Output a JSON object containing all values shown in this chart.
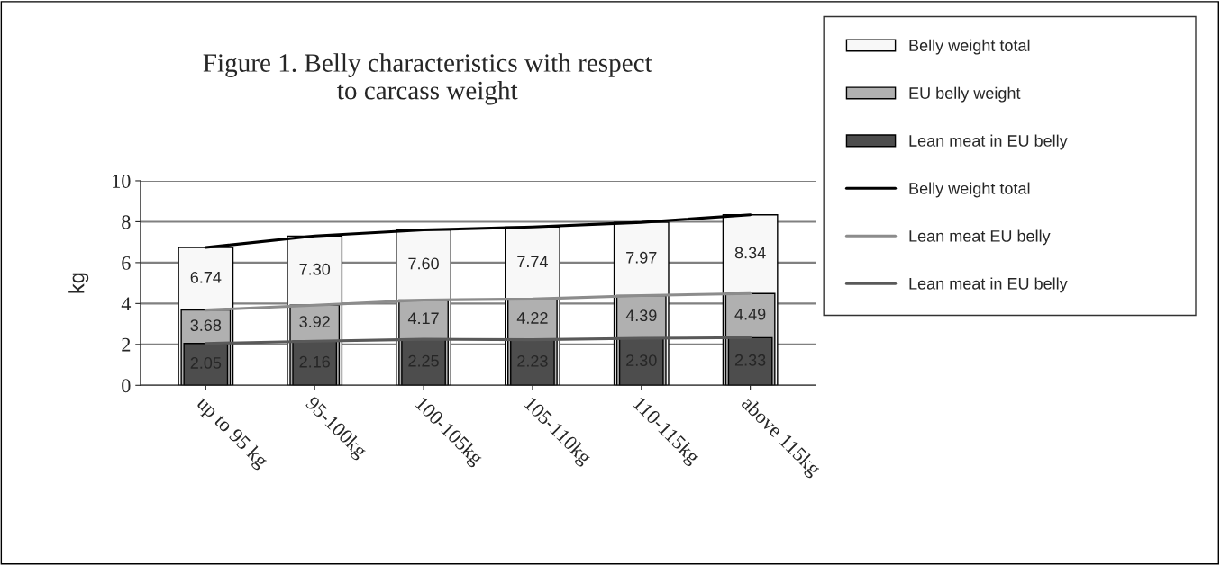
{
  "chart_data": {
    "type": "bar",
    "title": "Figure 1. Belly characteristics with respect\nto carcass weight",
    "ylabel": "kg",
    "categories": [
      "up to 95 kg",
      "95-100kg",
      "100-105kg",
      "105-110kg",
      "110-115kg",
      "above 115kg"
    ],
    "series": [
      {
        "name": "Belly weight total",
        "color": "#f8f8f8",
        "values": [
          6.74,
          7.3,
          7.6,
          7.74,
          7.97,
          8.34
        ],
        "value_labels": [
          "6.74",
          "7.30",
          "7.60",
          "7.74",
          "7.97",
          "8.34"
        ]
      },
      {
        "name": "EU belly weight",
        "color": "#b0b0b0",
        "values": [
          3.68,
          3.92,
          4.17,
          4.22,
          4.39,
          4.49
        ],
        "value_labels": [
          "3.68",
          "3.92",
          "4.17",
          "4.22",
          "4.39",
          "4.49"
        ]
      },
      {
        "name": "Lean meat in EU belly",
        "color": "#4d4d4d",
        "values": [
          2.05,
          2.16,
          2.25,
          2.23,
          2.3,
          2.33
        ],
        "value_labels": [
          "2.05",
          "2.16",
          "2.25",
          "2.23",
          "2.30",
          "2.33"
        ]
      },
      {
        "name": "Belly weight total",
        "type": "line",
        "color": "#000000",
        "values": [
          6.74,
          7.3,
          7.6,
          7.74,
          7.97,
          8.34
        ]
      },
      {
        "name": "Lean meat EU belly",
        "type": "line",
        "color": "#8c8c8c",
        "values": [
          3.68,
          3.92,
          4.17,
          4.22,
          4.39,
          4.49
        ]
      },
      {
        "name": "Lean meat in EU belly",
        "type": "line",
        "color": "#595959",
        "values": [
          2.05,
          2.16,
          2.25,
          2.23,
          2.3,
          2.33
        ]
      }
    ],
    "ylim": [
      0,
      10
    ],
    "yticks": [
      0,
      2,
      4,
      6,
      8,
      10
    ],
    "grid": "y",
    "legend": "right"
  }
}
